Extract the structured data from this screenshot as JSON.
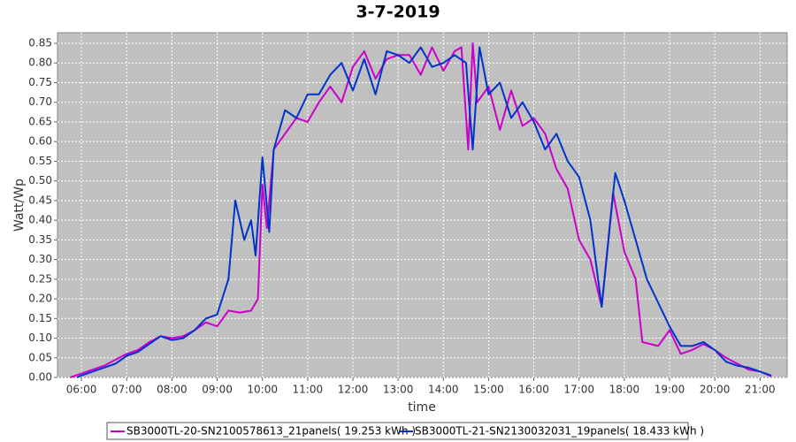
{
  "chart_data": {
    "type": "line",
    "title": "3-7-2019",
    "x_label": "time",
    "y_label": "Watt/Wp",
    "xlim": [
      5.47,
      21.6
    ],
    "ylim": [
      0,
      0.877
    ],
    "grid": true,
    "legend": "bottom",
    "xticks": [
      {
        "value": 6,
        "label": "06:00"
      },
      {
        "value": 7,
        "label": "07:00"
      },
      {
        "value": 8,
        "label": "08:00"
      },
      {
        "value": 9,
        "label": "09:00"
      },
      {
        "value": 10,
        "label": "10:00"
      },
      {
        "value": 11,
        "label": "11:00"
      },
      {
        "value": 12,
        "label": "12:00"
      },
      {
        "value": 13,
        "label": "13:00"
      },
      {
        "value": 14,
        "label": "14:00"
      },
      {
        "value": 15,
        "label": "15:00"
      },
      {
        "value": 16,
        "label": "16:00"
      },
      {
        "value": 17,
        "label": "17:00"
      },
      {
        "value": 18,
        "label": "18:00"
      },
      {
        "value": 19,
        "label": "19:00"
      },
      {
        "value": 20,
        "label": "20:00"
      },
      {
        "value": 21,
        "label": "21:00"
      }
    ],
    "yticks": [
      {
        "value": 0,
        "label": "0.00"
      },
      {
        "value": 0.05,
        "label": "0.05"
      },
      {
        "value": 0.1,
        "label": "0.10"
      },
      {
        "value": 0.15,
        "label": "0.15"
      },
      {
        "value": 0.2,
        "label": "0.20"
      },
      {
        "value": 0.25,
        "label": "0.25"
      },
      {
        "value": 0.3,
        "label": "0.30"
      },
      {
        "value": 0.35,
        "label": "0.35"
      },
      {
        "value": 0.4,
        "label": "0.40"
      },
      {
        "value": 0.45,
        "label": "0.45"
      },
      {
        "value": 0.5,
        "label": "0.50"
      },
      {
        "value": 0.55,
        "label": "0.55"
      },
      {
        "value": 0.6,
        "label": "0.60"
      },
      {
        "value": 0.65,
        "label": "0.65"
      },
      {
        "value": 0.7,
        "label": "0.70"
      },
      {
        "value": 0.75,
        "label": "0.75"
      },
      {
        "value": 0.8,
        "label": "0.80"
      },
      {
        "value": 0.85,
        "label": "0.85"
      }
    ],
    "series": [
      {
        "name": "SB3000TL-20-SN2100578613_21panels( 19.253 kWh )",
        "color": "#cc00cc",
        "x": [
          5.75,
          6.0,
          6.25,
          6.5,
          6.75,
          7.0,
          7.25,
          7.5,
          7.75,
          8.0,
          8.25,
          8.5,
          8.75,
          9.0,
          9.25,
          9.5,
          9.75,
          9.9,
          10.0,
          10.1,
          10.25,
          10.5,
          10.75,
          11.0,
          11.25,
          11.5,
          11.75,
          12.0,
          12.25,
          12.5,
          12.75,
          13.0,
          13.25,
          13.5,
          13.75,
          14.0,
          14.25,
          14.4,
          14.55,
          14.65,
          14.75,
          15.0,
          15.25,
          15.5,
          15.75,
          16.0,
          16.25,
          16.5,
          16.75,
          17.0,
          17.25,
          17.5,
          17.75,
          18.0,
          18.25,
          18.4,
          18.75,
          19.0,
          19.25,
          19.5,
          19.75,
          20.0,
          20.25,
          20.5,
          20.75,
          21.0,
          21.25
        ],
        "values": [
          0,
          0.01,
          0.02,
          0.03,
          0.045,
          0.06,
          0.07,
          0.09,
          0.105,
          0.1,
          0.105,
          0.12,
          0.14,
          0.13,
          0.17,
          0.165,
          0.17,
          0.2,
          0.49,
          0.38,
          0.58,
          0.62,
          0.66,
          0.65,
          0.7,
          0.74,
          0.7,
          0.79,
          0.83,
          0.76,
          0.81,
          0.82,
          0.82,
          0.77,
          0.84,
          0.78,
          0.83,
          0.84,
          0.58,
          0.85,
          0.7,
          0.74,
          0.63,
          0.73,
          0.64,
          0.66,
          0.62,
          0.53,
          0.48,
          0.35,
          0.3,
          0.18,
          0.47,
          0.32,
          0.25,
          0.09,
          0.08,
          0.12,
          0.06,
          0.07,
          0.085,
          0.07,
          0.05,
          0.035,
          0.02,
          0.015,
          0.003
        ]
      },
      {
        "name": "SB3000TL-21-SN2130032031_19panels( 18.433 kWh )",
        "color": "#0033cc",
        "x": [
          5.9,
          6.0,
          6.25,
          6.5,
          6.75,
          7.0,
          7.25,
          7.5,
          7.75,
          8.0,
          8.25,
          8.5,
          8.75,
          9.0,
          9.25,
          9.4,
          9.6,
          9.75,
          9.85,
          10.0,
          10.15,
          10.25,
          10.5,
          10.75,
          11.0,
          11.25,
          11.5,
          11.75,
          12.0,
          12.25,
          12.5,
          12.75,
          13.0,
          13.25,
          13.5,
          13.75,
          14.0,
          14.25,
          14.5,
          14.65,
          14.8,
          15.0,
          15.25,
          15.5,
          15.75,
          16.0,
          16.25,
          16.5,
          16.75,
          17.0,
          17.25,
          17.5,
          17.8,
          18.0,
          18.25,
          18.5,
          18.75,
          19.0,
          19.25,
          19.5,
          19.75,
          20.0,
          20.25,
          20.5,
          20.75,
          21.0,
          21.25
        ],
        "values": [
          0,
          0.005,
          0.015,
          0.025,
          0.035,
          0.055,
          0.065,
          0.085,
          0.105,
          0.095,
          0.1,
          0.12,
          0.15,
          0.16,
          0.25,
          0.45,
          0.35,
          0.4,
          0.31,
          0.56,
          0.37,
          0.58,
          0.68,
          0.66,
          0.72,
          0.72,
          0.77,
          0.8,
          0.73,
          0.81,
          0.72,
          0.83,
          0.82,
          0.8,
          0.84,
          0.79,
          0.8,
          0.82,
          0.8,
          0.58,
          0.84,
          0.72,
          0.75,
          0.66,
          0.7,
          0.65,
          0.58,
          0.62,
          0.55,
          0.51,
          0.4,
          0.18,
          0.52,
          0.45,
          0.35,
          0.25,
          0.19,
          0.13,
          0.08,
          0.08,
          0.09,
          0.07,
          0.04,
          0.03,
          0.025,
          0.015,
          0.005
        ]
      }
    ]
  }
}
